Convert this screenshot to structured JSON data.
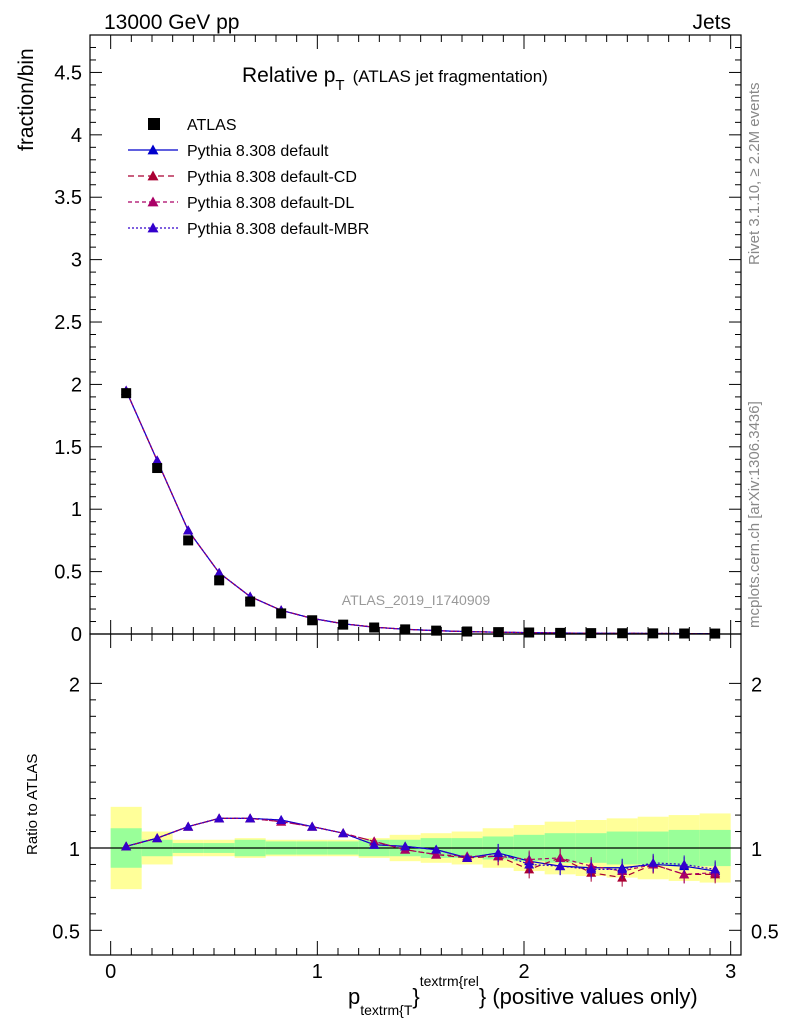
{
  "header": {
    "left": "13000 GeV pp",
    "right": "Jets"
  },
  "side": {
    "rivet": "Rivet 3.1.10, ≥ 2.2M events",
    "mcplots": "mcplots.cern.ch [arXiv:1306.3436]"
  },
  "plot_title": {
    "main": "Relative p",
    "sub": "T",
    "paren": "(ATLAS jet fragmentation)"
  },
  "watermark": "ATLAS_2019_I1740909",
  "xaxis": {
    "label_p": "p",
    "label_sub": "textrm{T",
    "label_sup": "textrm{rel",
    "label_brace": "}",
    "label_rest": "} (positive values only)"
  },
  "colors": {
    "data": "#000000",
    "default": "#0000cc",
    "cd": "#aa0033",
    "dl": "#aa0066",
    "mbr": "#3300cc",
    "band_inner": "#99ff99",
    "band_outer": "#ffff99"
  },
  "chart_data": [
    {
      "type": "scatter+line",
      "panel": "main",
      "ylabel": "fraction/bin",
      "xlim": [
        -0.1,
        3.05
      ],
      "ylim": [
        0,
        4.8
      ],
      "yticks": [
        "0",
        "0.5",
        "1",
        "1.5",
        "2",
        "2.5",
        "3",
        "3.5",
        "4",
        "4.5"
      ],
      "ytick_values": [
        0,
        0.5,
        1,
        1.5,
        2,
        2.5,
        3,
        3.5,
        4,
        4.5
      ],
      "xticks": [
        "0",
        "1",
        "2",
        "3"
      ],
      "xtick_values": [
        0,
        1,
        2,
        3
      ],
      "x": [
        0.075,
        0.225,
        0.375,
        0.525,
        0.675,
        0.825,
        0.975,
        1.125,
        1.275,
        1.425,
        1.575,
        1.725,
        1.875,
        2.025,
        2.175,
        2.325,
        2.475,
        2.625,
        2.775,
        2.925
      ],
      "series": [
        {
          "name": "ATLAS",
          "key": "data",
          "marker": "square",
          "values": [
            1.93,
            1.33,
            0.75,
            0.43,
            0.26,
            0.165,
            0.11,
            0.075,
            0.052,
            0.037,
            0.027,
            0.02,
            0.015,
            0.012,
            0.009,
            0.007,
            0.006,
            0.005,
            0.004,
            0.0035
          ]
        },
        {
          "name": "Pythia 8.308 default",
          "key": "default",
          "marker": "triangle",
          "dash": "",
          "values": [
            1.95,
            1.39,
            0.83,
            0.49,
            0.3,
            0.19,
            0.125,
            0.082,
            0.054,
            0.038,
            0.027,
            0.019,
            0.0145,
            0.011,
            0.008,
            0.006,
            0.0053,
            0.0045,
            0.0036,
            0.003
          ]
        },
        {
          "name": "Pythia 8.308 default-CD",
          "key": "cd",
          "marker": "triangle",
          "dash": "6,4",
          "values": [
            1.95,
            1.39,
            0.83,
            0.49,
            0.3,
            0.19,
            0.125,
            0.082,
            0.055,
            0.038,
            0.026,
            0.019,
            0.0145,
            0.0105,
            0.0085,
            0.006,
            0.005,
            0.0045,
            0.0034,
            0.003
          ]
        },
        {
          "name": "Pythia 8.308 default-DL",
          "key": "dl",
          "marker": "triangle",
          "dash": "4,3",
          "values": [
            1.95,
            1.39,
            0.83,
            0.49,
            0.3,
            0.19,
            0.125,
            0.082,
            0.055,
            0.038,
            0.026,
            0.019,
            0.0145,
            0.0105,
            0.0085,
            0.006,
            0.005,
            0.0045,
            0.0034,
            0.003
          ]
        },
        {
          "name": "Pythia 8.308 default-MBR",
          "key": "mbr",
          "marker": "triangle",
          "dash": "2,2",
          "values": [
            1.95,
            1.39,
            0.83,
            0.49,
            0.3,
            0.19,
            0.125,
            0.082,
            0.054,
            0.038,
            0.027,
            0.019,
            0.0145,
            0.011,
            0.008,
            0.006,
            0.0052,
            0.0045,
            0.0035,
            0.003
          ]
        }
      ]
    },
    {
      "type": "ratio",
      "panel": "ratio",
      "ylabel": "Ratio to ATLAS",
      "xlim": [
        -0.1,
        3.05
      ],
      "ylim": [
        0.35,
        2.3
      ],
      "yticks": [
        "0.5",
        "1",
        "2"
      ],
      "ytick_values": [
        0.5,
        1,
        2
      ],
      "xticks": [
        "0",
        "1",
        "2",
        "3"
      ],
      "xtick_values": [
        0,
        1,
        2,
        3
      ],
      "band_edges": [
        0,
        0.15,
        0.3,
        0.45,
        0.6,
        0.75,
        0.9,
        1.05,
        1.2,
        1.35,
        1.5,
        1.65,
        1.8,
        1.95,
        2.1,
        2.25,
        2.4,
        2.55,
        2.7,
        2.85,
        3.0
      ],
      "band_inner": [
        0.12,
        0.05,
        0.03,
        0.03,
        0.05,
        0.04,
        0.04,
        0.04,
        0.05,
        0.05,
        0.06,
        0.06,
        0.07,
        0.08,
        0.09,
        0.09,
        0.1,
        0.1,
        0.11,
        0.11
      ],
      "band_outer": [
        0.25,
        0.1,
        0.05,
        0.05,
        0.06,
        0.05,
        0.05,
        0.05,
        0.06,
        0.08,
        0.09,
        0.1,
        0.12,
        0.14,
        0.16,
        0.17,
        0.18,
        0.19,
        0.2,
        0.21
      ],
      "series": [
        {
          "name": "Pythia 8.308 default",
          "key": "default",
          "dash": "",
          "values": [
            1.01,
            1.06,
            1.13,
            1.18,
            1.18,
            1.17,
            1.13,
            1.09,
            1.02,
            1.01,
            0.99,
            0.94,
            0.97,
            0.92,
            0.89,
            0.88,
            0.88,
            0.9,
            0.89,
            0.86
          ]
        },
        {
          "name": "Pythia 8.308 default-CD",
          "key": "cd",
          "dash": "6,4",
          "values": [
            1.01,
            1.06,
            1.13,
            1.18,
            1.18,
            1.16,
            1.13,
            1.09,
            1.04,
            0.99,
            0.96,
            0.94,
            0.95,
            0.87,
            0.94,
            0.85,
            0.82,
            0.9,
            0.84,
            0.84
          ]
        },
        {
          "name": "Pythia 8.308 default-DL",
          "key": "dl",
          "dash": "4,3",
          "values": [
            1.01,
            1.06,
            1.13,
            1.18,
            1.18,
            1.16,
            1.13,
            1.09,
            1.04,
            0.99,
            0.96,
            0.95,
            0.95,
            0.93,
            0.94,
            0.89,
            0.86,
            0.9,
            0.84,
            0.85
          ]
        },
        {
          "name": "Pythia 8.308 default-MBR",
          "key": "mbr",
          "dash": "2,2",
          "values": [
            1.01,
            1.06,
            1.13,
            1.18,
            1.18,
            1.17,
            1.13,
            1.09,
            1.02,
            1.01,
            0.99,
            0.94,
            0.97,
            0.9,
            0.89,
            0.87,
            0.87,
            0.91,
            0.9,
            0.87
          ]
        }
      ]
    }
  ]
}
